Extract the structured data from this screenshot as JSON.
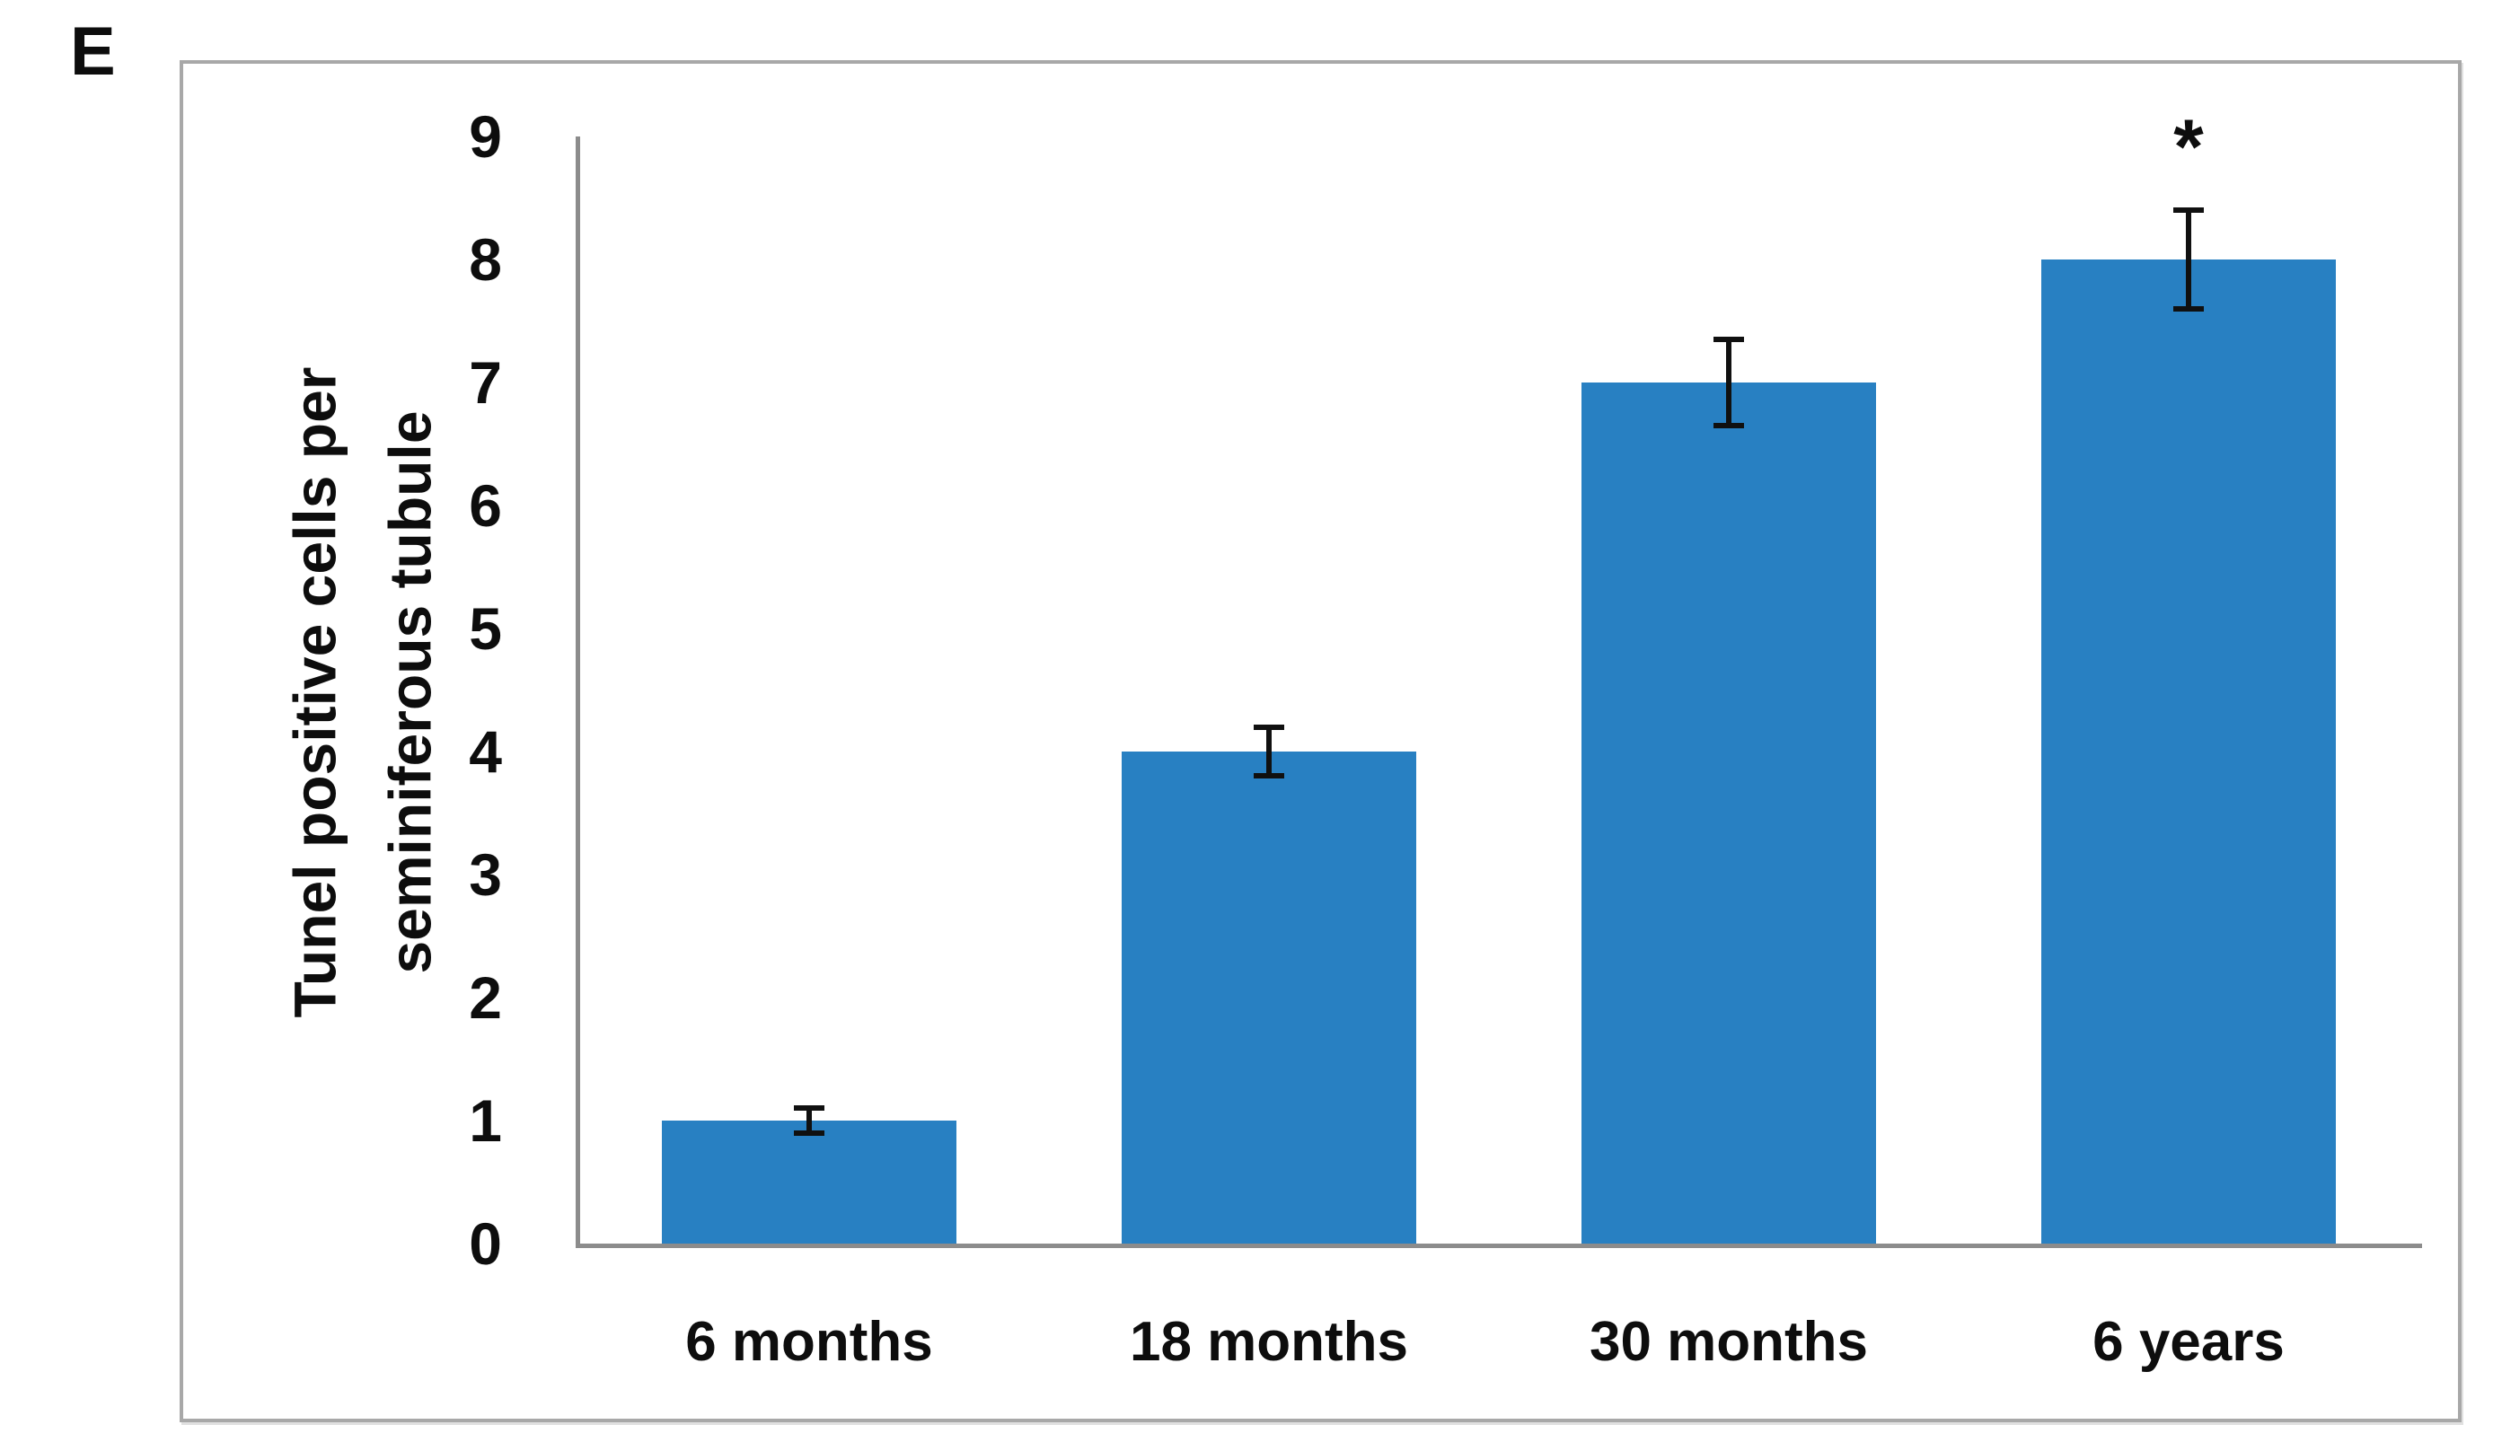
{
  "panel_label": "E",
  "chart_data": {
    "type": "bar",
    "title": "",
    "categories": [
      "6 months",
      "18 months",
      "30 months",
      "6 years"
    ],
    "values": [
      1,
      4,
      7,
      8
    ],
    "errors": [
      0.1,
      0.2,
      0.35,
      0.4
    ],
    "annotations": [
      {
        "category": "6 years",
        "text": "*"
      }
    ],
    "ylabel": "Tunel positive cells per seminiferous tubule",
    "ylabel_lines": [
      "Tunel positive cells per",
      "seminiferous tubule"
    ],
    "yticks": [
      0,
      1,
      2,
      3,
      4,
      5,
      6,
      7,
      8,
      9
    ],
    "ylim": [
      0,
      9
    ],
    "xlabel": "",
    "grid": false,
    "legend": null,
    "bar_color": "#2880c2",
    "axis_color": "#8c8c8c",
    "frame_border_color": "#a8a8a8",
    "error_bar_color": "#101010",
    "text_color": "#0d0d0d"
  }
}
